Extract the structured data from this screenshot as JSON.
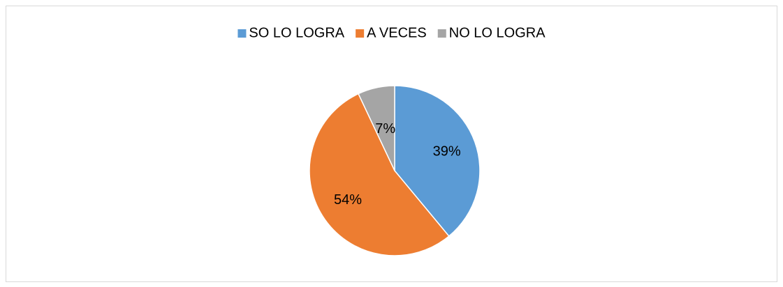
{
  "chart_data": {
    "type": "pie",
    "categories": [
      "SO LO LOGRA",
      "A VECES",
      "NO LO LOGRA"
    ],
    "values": [
      39,
      54,
      7
    ],
    "value_labels": [
      "39%",
      "54%",
      "7%"
    ],
    "colors": [
      "#5b9bd5",
      "#ed7d31",
      "#a5a5a5"
    ],
    "legend": "top"
  }
}
